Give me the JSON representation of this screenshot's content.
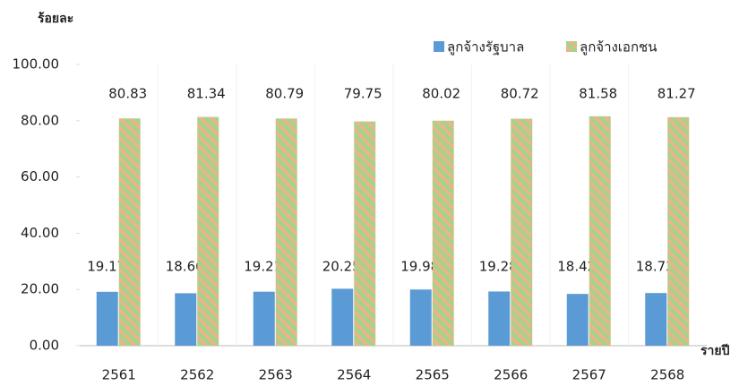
{
  "chart_data": {
    "type": "bar",
    "y_label": "ร้อยละ",
    "x_label": "รายปี",
    "categories": [
      "2561",
      "2562",
      "2563",
      "2564",
      "2565",
      "2566",
      "2567",
      "2568"
    ],
    "series": [
      {
        "name": "ลูกจ้างรัฐบาล",
        "color": "#5b9bd5",
        "values": [
          19.17,
          18.66,
          19.21,
          20.25,
          19.98,
          19.28,
          18.42,
          18.73
        ]
      },
      {
        "name": "ลูกจ้างเอกชน",
        "color": "#a9d18e",
        "hatch_color": "#f4b183",
        "values": [
          80.83,
          81.34,
          80.79,
          79.75,
          80.02,
          80.72,
          81.58,
          81.27
        ]
      }
    ],
    "ylim": [
      0,
      100
    ],
    "yticks": [
      {
        "value": 0,
        "label": "0.00"
      },
      {
        "value": 20,
        "label": "20.00"
      },
      {
        "value": 40,
        "label": "40.00"
      },
      {
        "value": 60,
        "label": "60.00"
      },
      {
        "value": 80,
        "label": "80.00"
      },
      {
        "value": 100,
        "label": "100.00"
      }
    ],
    "legend": "top-right"
  }
}
